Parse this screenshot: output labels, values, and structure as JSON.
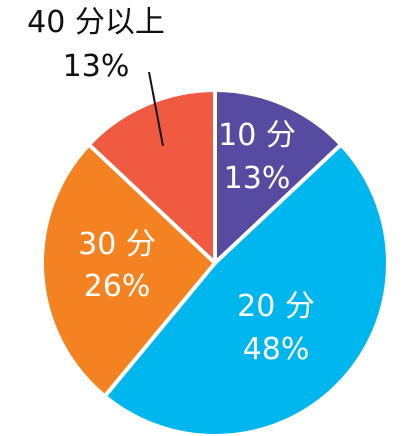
{
  "chart_data": {
    "type": "pie",
    "start_angle_deg": 0,
    "direction": "clockwise",
    "slices": [
      {
        "label": "10 分",
        "value": 13,
        "value_label": "13%",
        "color": "#574ba1",
        "text_color": "#ffffff"
      },
      {
        "label": "20 分",
        "value": 48,
        "value_label": "48%",
        "color": "#00b6ef",
        "text_color": "#ffffff"
      },
      {
        "label": "30 分",
        "value": 26,
        "value_label": "26%",
        "color": "#f58220",
        "text_color": "#ffffff"
      },
      {
        "label": "40 分以上",
        "value": 13,
        "value_label": "13%",
        "color": "#ef5a41",
        "text_color": "#111111"
      }
    ]
  }
}
